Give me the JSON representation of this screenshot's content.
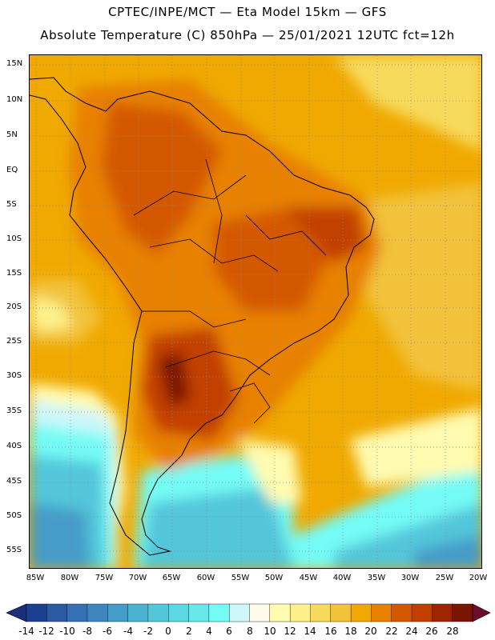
{
  "title": {
    "line1": "CPTEC/INPE/MCT —  Eta Model 15km — GFS",
    "line2": "Absolute Temperature (C) 850hPa — 25/01/2021 12UTC fct=12h"
  },
  "map": {
    "lat_labels": [
      "15N",
      "10N",
      "5N",
      "EQ",
      "5S",
      "10S",
      "15S",
      "20S",
      "25S",
      "30S",
      "35S",
      "40S",
      "45S",
      "50S",
      "55S"
    ],
    "lon_labels": [
      "85W",
      "80W",
      "75W",
      "70W",
      "65W",
      "60W",
      "55W",
      "50W",
      "45W",
      "40W",
      "35W",
      "30W",
      "25W",
      "20W"
    ],
    "grid_style": "dotted gray"
  },
  "colorbar": {
    "labels": [
      "-14",
      "-12",
      "-10",
      "-8",
      "-6",
      "-4",
      "-2",
      "0",
      "2",
      "4",
      "6",
      "8",
      "10",
      "12",
      "14",
      "16",
      "18",
      "20",
      "22",
      "24",
      "26",
      "28"
    ],
    "colors": [
      "#1d3f8f",
      "#2b5aa3",
      "#3470b3",
      "#3d86c0",
      "#459cc9",
      "#4bb3d2",
      "#53c6da",
      "#5cd8e3",
      "#68e8ea",
      "#75fbf6",
      "#cdf7fb",
      "#fffbeb",
      "#fffbb0",
      "#fdf08a",
      "#f7da5c",
      "#f2c23b",
      "#f0a900",
      "#e88000",
      "#d45800",
      "#c23f00",
      "#9e2500",
      "#7a1500"
    ],
    "under_color": "#1a2e7a",
    "over_color": "#6b0d2c"
  }
}
